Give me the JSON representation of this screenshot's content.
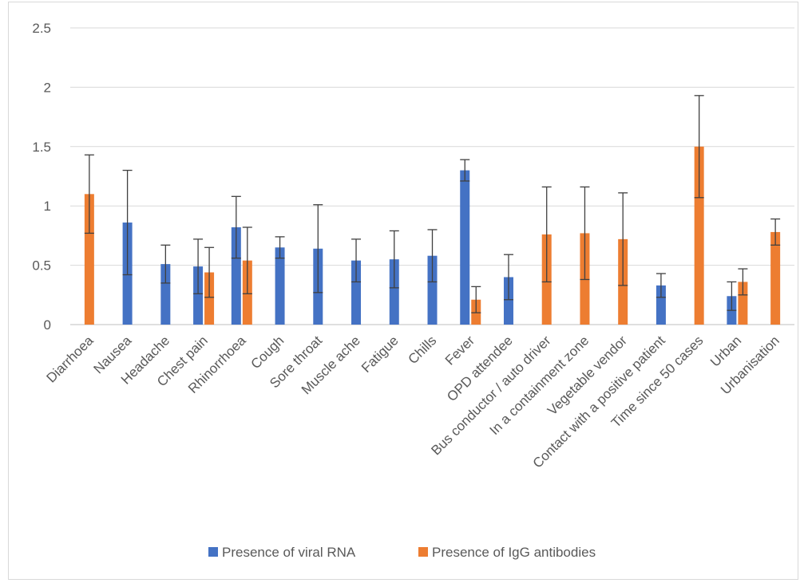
{
  "chart_data": {
    "type": "bar",
    "title": "",
    "xlabel": "",
    "ylabel": "",
    "ylim": [
      0,
      2.5
    ],
    "yticks": [
      "0",
      "0.5",
      "1",
      "1.5",
      "2",
      "2.5"
    ],
    "grid": true,
    "legend_position": "bottom",
    "categories": [
      "Diarrhoea",
      "Nausea",
      "Headache",
      "Chest pain",
      "Rhinorrhoea",
      "Cough",
      "Sore throat",
      "Muscle ache",
      "Fatigue",
      "Chills",
      "Fever",
      "OPD attendee",
      "Bus conductor / auto driver",
      "In a containment zone",
      "Vegetable vendor",
      "Contact with a positive patient",
      "Time since 50 cases",
      "Urban",
      "Urbanisation"
    ],
    "series": [
      {
        "name": "Presence of viral RNA",
        "color": "#4472C4",
        "values": [
          null,
          0.86,
          0.51,
          0.49,
          0.82,
          0.65,
          0.64,
          0.54,
          0.55,
          0.58,
          1.3,
          0.4,
          null,
          null,
          null,
          0.33,
          null,
          0.24,
          null
        ],
        "err_low": [
          null,
          0.42,
          0.35,
          0.26,
          0.56,
          0.56,
          0.27,
          0.36,
          0.31,
          0.36,
          1.21,
          0.21,
          null,
          null,
          null,
          0.23,
          null,
          0.12,
          null
        ],
        "err_high": [
          null,
          1.3,
          0.67,
          0.72,
          1.08,
          0.74,
          1.01,
          0.72,
          0.79,
          0.8,
          1.39,
          0.59,
          null,
          null,
          null,
          0.43,
          null,
          0.36,
          null
        ]
      },
      {
        "name": "Presence of IgG antibodies",
        "color": "#ED7D31",
        "values": [
          1.1,
          null,
          null,
          0.44,
          0.54,
          null,
          null,
          null,
          null,
          null,
          0.21,
          null,
          0.76,
          0.77,
          0.72,
          null,
          1.5,
          0.36,
          0.78
        ],
        "err_low": [
          0.77,
          null,
          null,
          0.23,
          0.26,
          null,
          null,
          null,
          null,
          null,
          0.1,
          null,
          0.36,
          0.38,
          0.33,
          null,
          1.07,
          0.25,
          0.67
        ],
        "err_high": [
          1.43,
          null,
          null,
          0.65,
          0.82,
          null,
          null,
          null,
          null,
          null,
          0.32,
          null,
          1.16,
          1.16,
          1.11,
          null,
          1.93,
          0.47,
          0.89
        ]
      }
    ]
  },
  "colors": {
    "gridline": "#d9d9d9",
    "axis": "#bfbfbf",
    "error_bar": "#404040",
    "text": "#595959"
  }
}
